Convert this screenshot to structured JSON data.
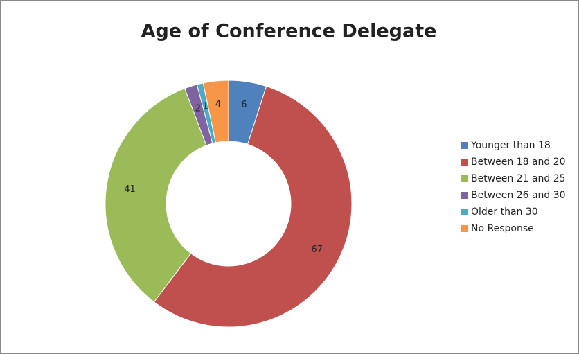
{
  "chart_data": {
    "type": "donut",
    "title": "Age of Conference Delegate",
    "categories": [
      "Younger than 18",
      "Between 18 and 20",
      "Between 21 and 25",
      "Between 26 and 30",
      "Older than 30",
      "No Response"
    ],
    "values": [
      6,
      67,
      41,
      2,
      1,
      4
    ],
    "colors": [
      "#4f81bd",
      "#c0504d",
      "#9bbb59",
      "#8064a2",
      "#4bacc6",
      "#f79646"
    ],
    "legend": "right"
  }
}
